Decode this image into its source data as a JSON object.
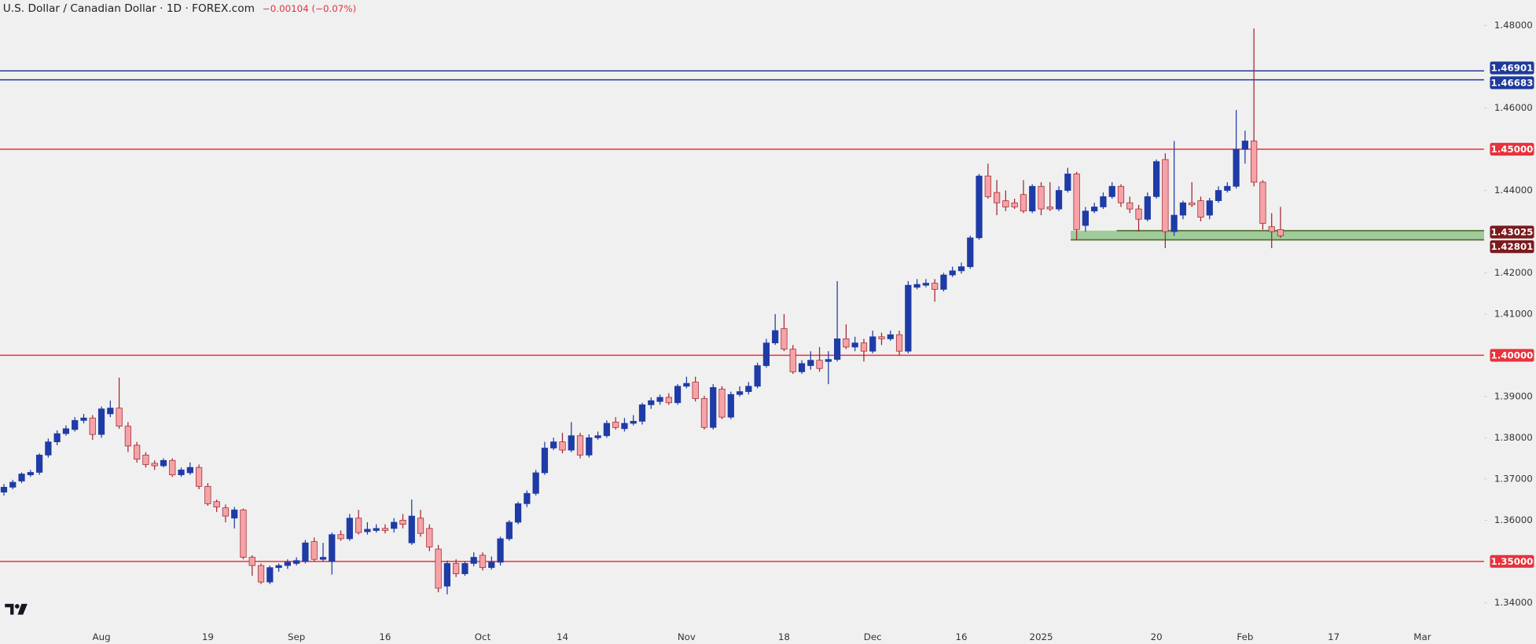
{
  "chart_data": {
    "type": "candlestick",
    "title": "U.S. Dollar / Canadian Dollar · 1D · FOREX.com",
    "change": "−0.00104 (−0.07%)",
    "up_color": "#1e3ba6",
    "down_color": "#f5a3a8",
    "down_edge": "#a3262e",
    "categories": [
      null,
      null,
      null,
      null,
      null,
      null,
      null,
      null,
      null,
      null,
      null,
      "Aug",
      null,
      null,
      null,
      null,
      null,
      null,
      null,
      null,
      null,
      null,
      null,
      "19",
      null,
      null,
      null,
      null,
      null,
      null,
      null,
      null,
      null,
      "Sep",
      null,
      null,
      null,
      null,
      null,
      null,
      null,
      null,
      null,
      "16",
      null,
      null,
      null,
      null,
      null,
      null,
      null,
      null,
      null,
      null,
      "Oct",
      null,
      null,
      null,
      null,
      null,
      null,
      null,
      null,
      "14",
      null,
      null,
      null,
      null,
      null,
      null,
      null,
      null,
      null,
      null,
      null,
      null,
      null,
      "Nov",
      null,
      null,
      null,
      null,
      null,
      null,
      null,
      null,
      null,
      null,
      "18",
      null,
      null,
      null,
      null,
      null,
      null,
      null,
      null,
      null,
      "Dec",
      null,
      null,
      null,
      null,
      null,
      null,
      null,
      null,
      null,
      "16",
      null,
      null,
      null,
      null,
      null,
      null,
      null,
      null,
      "2025",
      null,
      null,
      null,
      null,
      null,
      null,
      null,
      null,
      null,
      null,
      null,
      null,
      "20",
      null,
      null,
      null,
      null,
      null,
      null,
      null,
      null,
      null,
      "Feb",
      null,
      null,
      null,
      null,
      null,
      null,
      null,
      null,
      null,
      "17",
      null,
      null,
      null,
      null,
      null,
      null,
      null,
      null,
      null,
      "Mar",
      null,
      null,
      null,
      null,
      null,
      null,
      null
    ],
    "open": [
      1.3668,
      1.368,
      1.3695,
      1.371,
      1.3716,
      1.3758,
      1.379,
      1.381,
      1.382,
      1.3842,
      1.3848,
      1.3808,
      1.3858,
      1.3872,
      1.3828,
      1.3782,
      1.3758,
      1.3738,
      1.3732,
      1.3745,
      1.371,
      1.3715,
      1.3728,
      1.3682,
      1.3645,
      1.363,
      1.3605,
      1.3625,
      1.351,
      1.349,
      1.345,
      1.3485,
      1.349,
      1.3495,
      1.35,
      1.3548,
      1.3505,
      1.35,
      1.3565,
      1.3555,
      1.3605,
      1.3572,
      1.3575,
      1.358,
      1.358,
      1.36,
      1.3545,
      1.3605,
      1.358,
      1.353,
      1.344,
      1.3495,
      1.347,
      1.3495,
      1.3515,
      1.3485,
      1.3498,
      1.3555,
      1.3595,
      1.364,
      1.3665,
      1.3715,
      1.3775,
      1.379,
      1.377,
      1.3805,
      1.3758,
      1.38,
      1.3805,
      1.3838,
      1.3822,
      1.3835,
      1.384,
      1.388,
      1.3888,
      1.3898,
      1.3885,
      1.3925,
      1.3935,
      1.3895,
      1.3825,
      1.3918,
      1.385,
      1.3905,
      1.3912,
      1.3925,
      1.3975,
      1.403,
      1.4065,
      1.4015,
      1.396,
      1.3975,
      1.3988,
      1.3985,
      1.399,
      1.404,
      1.402,
      1.403,
      1.401,
      1.4045,
      1.404,
      1.405,
      1.401,
      1.4165,
      1.417,
      1.4175,
      1.416,
      1.4195,
      1.4205,
      1.4215,
      1.4285,
      1.4435,
      1.4395,
      1.4375,
      1.437,
      1.439,
      1.435,
      1.441,
      1.436,
      1.4355,
      1.44,
      1.444,
      1.4315,
      1.435,
      1.436,
      1.4385,
      1.441,
      1.437,
      1.4355,
      1.433,
      1.4385,
      1.4475,
      1.43,
      1.434,
      1.437,
      1.4375,
      1.434,
      1.4375,
      1.44,
      1.441,
      1.45,
      1.452,
      1.442,
      1.4312,
      1.4305,
      null,
      null,
      null,
      null,
      null,
      null,
      null,
      null,
      null,
      null,
      null,
      null,
      null,
      null,
      null,
      null,
      null,
      null,
      null,
      null,
      null,
      null,
      null
    ],
    "high": [
      1.3688,
      1.3698,
      1.3716,
      1.3722,
      1.3762,
      1.3798,
      1.3818,
      1.383,
      1.385,
      1.3858,
      1.3855,
      1.3876,
      1.389,
      1.3946,
      1.3838,
      1.379,
      1.3765,
      1.3745,
      1.375,
      1.375,
      1.3728,
      1.374,
      1.3735,
      1.369,
      1.365,
      1.3638,
      1.3632,
      1.3628,
      1.3515,
      1.3495,
      1.349,
      1.3495,
      1.3505,
      1.351,
      1.3552,
      1.3558,
      1.3545,
      1.357,
      1.3575,
      1.3615,
      1.3625,
      1.3595,
      1.359,
      1.359,
      1.3605,
      1.3615,
      1.365,
      1.3625,
      1.359,
      1.354,
      1.3502,
      1.3505,
      1.35,
      1.3522,
      1.3522,
      1.3512,
      1.356,
      1.36,
      1.3645,
      1.3672,
      1.3722,
      1.379,
      1.38,
      1.3812,
      1.3838,
      1.3812,
      1.3808,
      1.3815,
      1.3842,
      1.385,
      1.3848,
      1.3855,
      1.3885,
      1.3898,
      1.3905,
      1.3908,
      1.393,
      1.3948,
      1.3948,
      1.3902,
      1.393,
      1.3925,
      1.3912,
      1.3925,
      1.3935,
      1.3982,
      1.404,
      1.41,
      1.41,
      1.4025,
      1.3988,
      1.401,
      1.402,
      1.401,
      1.418,
      1.4075,
      1.4045,
      1.404,
      1.406,
      1.4055,
      1.406,
      1.406,
      1.418,
      1.4185,
      1.4185,
      1.4185,
      1.42,
      1.4215,
      1.4225,
      1.429,
      1.444,
      1.4465,
      1.4425,
      1.44,
      1.438,
      1.4425,
      1.4415,
      1.442,
      1.442,
      1.441,
      1.4455,
      1.4445,
      1.436,
      1.437,
      1.4395,
      1.442,
      1.4415,
      1.4385,
      1.4365,
      1.4395,
      1.4475,
      1.449,
      1.452,
      1.4375,
      1.442,
      1.4385,
      1.4382,
      1.441,
      1.442,
      1.4595,
      1.4545,
      1.4793,
      1.4425,
      1.4345,
      1.436,
      null,
      null,
      null,
      null,
      null,
      null,
      null,
      null,
      null,
      null,
      null,
      null,
      null,
      null,
      null,
      null,
      null,
      null,
      null,
      null,
      null,
      null,
      null
    ],
    "low": [
      1.366,
      1.3675,
      1.369,
      1.3705,
      1.371,
      1.3752,
      1.3782,
      1.3805,
      1.3815,
      1.3835,
      1.3795,
      1.38,
      1.385,
      1.3822,
      1.3765,
      1.374,
      1.3728,
      1.3722,
      1.3728,
      1.3705,
      1.3705,
      1.371,
      1.3675,
      1.3635,
      1.362,
      1.3595,
      1.358,
      1.3505,
      1.3465,
      1.3445,
      1.3445,
      1.3475,
      1.3482,
      1.349,
      1.3495,
      1.35,
      1.35,
      1.3468,
      1.355,
      1.355,
      1.3565,
      1.3565,
      1.357,
      1.3568,
      1.357,
      1.358,
      1.354,
      1.356,
      1.3525,
      1.3425,
      1.342,
      1.3462,
      1.3465,
      1.3488,
      1.3478,
      1.348,
      1.349,
      1.355,
      1.359,
      1.3632,
      1.366,
      1.371,
      1.377,
      1.3762,
      1.3765,
      1.375,
      1.3752,
      1.3795,
      1.38,
      1.382,
      1.3815,
      1.383,
      1.3832,
      1.387,
      1.388,
      1.388,
      1.388,
      1.392,
      1.3888,
      1.382,
      1.382,
      1.3845,
      1.3845,
      1.39,
      1.3905,
      1.392,
      1.397,
      1.4025,
      1.401,
      1.3955,
      1.3955,
      1.3965,
      1.396,
      1.393,
      1.3985,
      1.4015,
      1.401,
      1.3985,
      1.4005,
      1.4025,
      1.4035,
      1.4,
      1.4005,
      1.416,
      1.4165,
      1.413,
      1.4155,
      1.419,
      1.4198,
      1.421,
      1.428,
      1.438,
      1.434,
      1.435,
      1.4355,
      1.4345,
      1.4345,
      1.434,
      1.435,
      1.435,
      1.4395,
      1.428,
      1.43,
      1.4345,
      1.4355,
      1.438,
      1.436,
      1.4345,
      1.43,
      1.4325,
      1.438,
      1.426,
      1.429,
      1.433,
      1.436,
      1.4325,
      1.433,
      1.437,
      1.4395,
      1.4405,
      1.4465,
      1.441,
      1.4305,
      1.426,
      1.4285,
      null,
      null,
      null,
      null,
      null,
      null,
      null,
      null,
      null,
      null,
      null,
      null,
      null,
      null,
      null,
      null,
      null,
      null,
      null,
      null,
      null,
      null,
      null
    ],
    "close": [
      1.368,
      1.3692,
      1.3712,
      1.3716,
      1.3758,
      1.379,
      1.381,
      1.3822,
      1.3842,
      1.3848,
      1.3808,
      1.387,
      1.3872,
      1.3828,
      1.378,
      1.3748,
      1.3735,
      1.3732,
      1.3745,
      1.371,
      1.3722,
      1.3728,
      1.3682,
      1.364,
      1.3632,
      1.361,
      1.3625,
      1.351,
      1.349,
      1.345,
      1.3485,
      1.349,
      1.3498,
      1.3502,
      1.3545,
      1.3505,
      1.351,
      1.3565,
      1.3555,
      1.3605,
      1.357,
      1.3578,
      1.358,
      1.3575,
      1.3595,
      1.359,
      1.361,
      1.3568,
      1.3535,
      1.3435,
      1.3495,
      1.347,
      1.3495,
      1.351,
      1.3485,
      1.3498,
      1.3555,
      1.3595,
      1.364,
      1.3665,
      1.3715,
      1.3775,
      1.379,
      1.377,
      1.3805,
      1.3758,
      1.38,
      1.3805,
      1.3835,
      1.3825,
      1.3835,
      1.384,
      1.388,
      1.389,
      1.3898,
      1.3885,
      1.3925,
      1.3932,
      1.3895,
      1.3825,
      1.3922,
      1.385,
      1.3905,
      1.3912,
      1.3925,
      1.3975,
      1.403,
      1.406,
      1.4015,
      1.396,
      1.398,
      1.3988,
      1.3968,
      1.399,
      1.404,
      1.402,
      1.403,
      1.401,
      1.4045,
      1.404,
      1.405,
      1.401,
      1.417,
      1.4172,
      1.4175,
      1.416,
      1.4195,
      1.4205,
      1.4215,
      1.4285,
      1.4435,
      1.4385,
      1.437,
      1.436,
      1.436,
      1.435,
      1.441,
      1.4355,
      1.4355,
      1.44,
      1.444,
      1.4305,
      1.435,
      1.436,
      1.4385,
      1.441,
      1.437,
      1.4355,
      1.433,
      1.4385,
      1.447,
      1.43,
      1.434,
      1.437,
      1.4365,
      1.4335,
      1.4375,
      1.44,
      1.441,
      1.45,
      1.452,
      1.442,
      1.432,
      1.43,
      1.429,
      null,
      null,
      null,
      null,
      null,
      null,
      null,
      null,
      null,
      null,
      null,
      null,
      null,
      null,
      null,
      null,
      null,
      null,
      null,
      null,
      null,
      null,
      null
    ],
    "ylim": [
      1.334,
      1.4862
    ],
    "yticks": [
      {
        "value": 1.34,
        "label": "1.34000"
      },
      {
        "value": 1.36,
        "label": "1.36000"
      },
      {
        "value": 1.37,
        "label": "1.37000"
      },
      {
        "value": 1.38,
        "label": "1.38000"
      },
      {
        "value": 1.39,
        "label": "1.39000"
      },
      {
        "value": 1.41,
        "label": "1.41000"
      },
      {
        "value": 1.42,
        "label": "1.42000"
      },
      {
        "value": 1.44,
        "label": "1.44000"
      },
      {
        "value": 1.46,
        "label": "1.46000"
      },
      {
        "value": 1.48,
        "label": "1.48000"
      }
    ],
    "levels": [
      {
        "value": 1.46901,
        "label": "1.46901",
        "color": "#1e3a9a"
      },
      {
        "value": 1.46683,
        "label": "1.46683",
        "color": "#1e3a9a"
      },
      {
        "value": 1.45,
        "label": "1.45000",
        "color": "#e8323c"
      },
      {
        "value": 1.4,
        "label": "1.40000",
        "color": "#e8323c"
      },
      {
        "value": 1.35,
        "label": "1.35000",
        "color": "#e8323c"
      }
    ],
    "zone": {
      "high": {
        "value": 1.43025,
        "label": "1.43025"
      },
      "low": {
        "value": 1.42801,
        "label": "1.42801"
      },
      "color": "#93c48b",
      "line_color": "#4d6a2c",
      "label_color": "#7b1a1d"
    }
  }
}
